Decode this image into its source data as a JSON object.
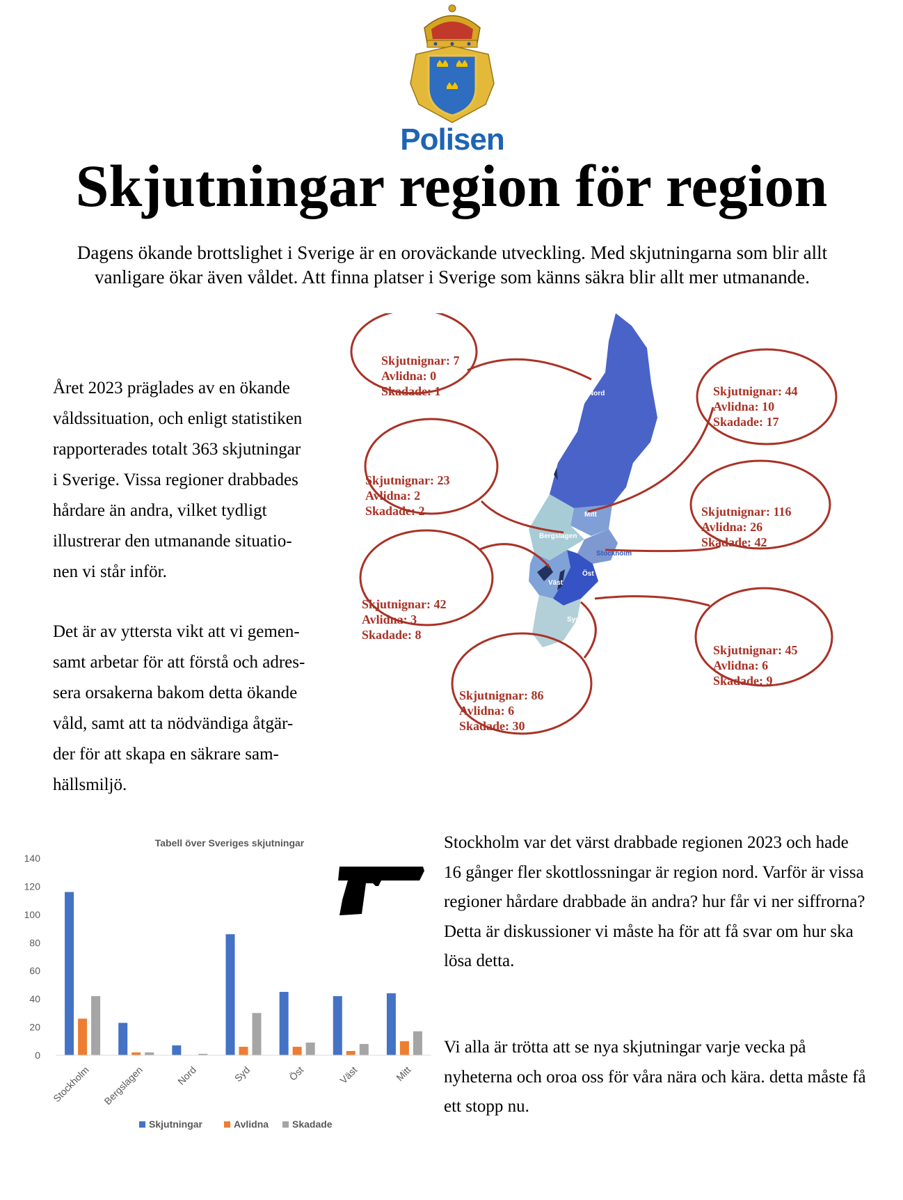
{
  "header": {
    "logo_text": "Polisen",
    "title": "Skjutningar region för region",
    "intro": "Dagens ökande brottslighet i Sverige är en oroväckande utveckling. Med skjutningarna som blir allt vanligare ökar även våldet. Att finna platser i Sverige som känns säkra blir allt mer utmanande."
  },
  "left_text": {
    "p1": "Året 2023 präglades av en ökande\nvåldssituation, och enligt statistiken\nrapporterades totalt 363 skjutningar\ni Sverige. Vissa regioner drabbades\nhårdare än andra, vilket tydligt\nillustrerar den utmanande situatio-\nnen vi står inför.",
    "p2": "Det är av yttersta vikt att vi gemen-\nsamt arbetar för att förstå och adres-\nsera orsakerna bakom detta ökande\nvåld, samt att ta nödvändiga åtgär-\nder för att skapa en säkrare sam-\nhällsmiljö."
  },
  "right_text": {
    "p1": "Stockholm var det värst drabbade regionen 2023 och hade 16 gånger fler skottlossningar är region nord. Varför är vissa regioner hårdare drabbade än andra? hur får vi ner siffrorna? Detta är diskussioner vi måste ha för att få svar om hur ska lösa detta.",
    "p2": "Vi alla är trötta att se nya skjutningar varje vecka på nyheterna och oroa oss för våra nära och kära. detta måste få ett stopp nu."
  },
  "map": {
    "region_labels": {
      "nord": "Nord",
      "mitt": "Mitt",
      "bergslagen": "Bergslagen",
      "stockholm": "Stockholm",
      "ost": "Öst",
      "vast": "Väst",
      "syd": "Syd"
    },
    "callouts": {
      "nord": {
        "line1": "Skjutnignar: 7",
        "line2": "Avlidna: 0",
        "line3": "Skadade: 1"
      },
      "mitt": {
        "line1": "Skjutnignar: 44",
        "line2": "Avlidna: 10",
        "line3": "Skadade: 17"
      },
      "bergslagen": {
        "line1": "Skjutnignar: 23",
        "line2": "Avlidna: 2",
        "line3": "Skadade: 2"
      },
      "stockholm": {
        "line1": "Skjutnignar: 116",
        "line2": "Avlidna: 26",
        "line3": "Skadade: 42"
      },
      "vast": {
        "line1": "Skjutnignar: 42",
        "line2": "Avlidna: 3",
        "line3": "Skadade: 8"
      },
      "ost": {
        "line1": "Skjutnignar: 45",
        "line2": "Avlidna: 6",
        "line3": "Skadade: 9"
      },
      "syd": {
        "line1": "Skjutnignar: 86",
        "line2": "Avlidna: 6",
        "line3": "Skadade: 30"
      }
    },
    "colors": {
      "callout_stroke": "#a93226",
      "callout_text": "#a93226",
      "nord_fill": "#4a63c8",
      "mitt_fill": "#7f9fd6",
      "bergslagen_fill": "#a8ccd6",
      "stockholm_fill": "#7e98d0",
      "ost_fill": "#3553c4",
      "vast_fill": "#7fa2d8",
      "syd_fill": "#b3d0d9",
      "lake_fill": "#22315e"
    }
  },
  "chart_data": {
    "type": "bar",
    "title": "Tabell över Sveriges skjutningar",
    "categories": [
      "Stockholm",
      "Bergslagen",
      "Nord",
      "Syd",
      "Öst",
      "Väst",
      "Mitt"
    ],
    "series": [
      {
        "name": "Skjutningar",
        "color": "#4472c4",
        "values": [
          116,
          23,
          7,
          86,
          45,
          42,
          44
        ]
      },
      {
        "name": "Avlidna",
        "color": "#ed7d31",
        "values": [
          26,
          2,
          0,
          6,
          6,
          3,
          10
        ]
      },
      {
        "name": "Skadade",
        "color": "#a5a5a5",
        "values": [
          42,
          2,
          1,
          30,
          9,
          8,
          17
        ]
      }
    ],
    "ylim": [
      0,
      140
    ],
    "yticks": [
      0,
      20,
      40,
      60,
      80,
      100,
      120,
      140
    ],
    "grid": false,
    "legend": "bottom"
  }
}
